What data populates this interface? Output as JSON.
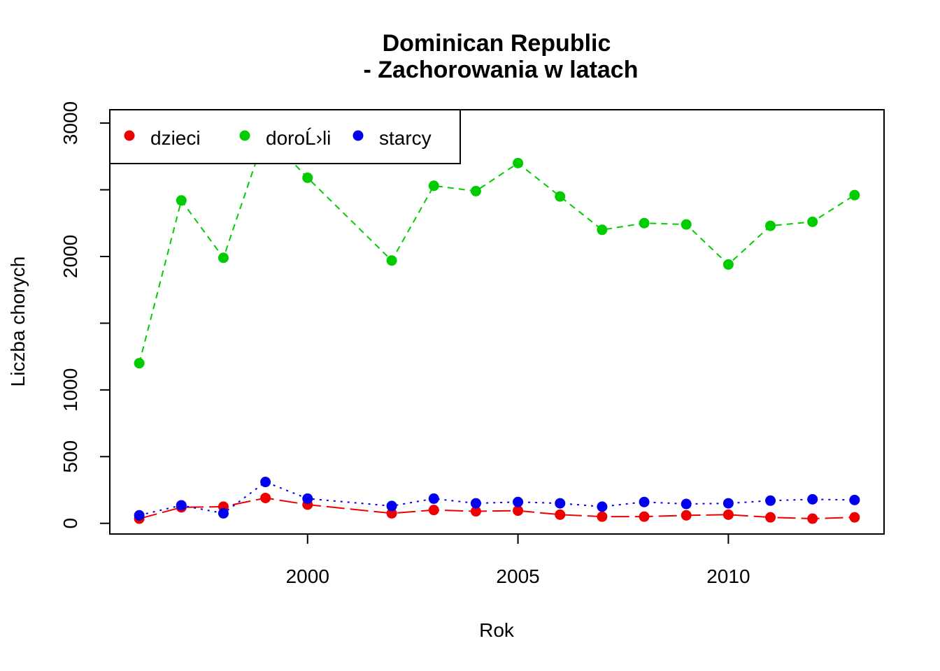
{
  "chart_data": {
    "type": "line",
    "title_line1": "Dominican Republic",
    "title_line2": "- Zachorowania w latach",
    "xlabel": "Rok",
    "ylabel": "Liczba chorych",
    "xlim": [
      1995.3,
      2013.7
    ],
    "ylim": [
      -80,
      3100
    ],
    "x_ticks": [
      2000,
      2005,
      2010
    ],
    "y_ticks": [
      0,
      500,
      1000,
      1500,
      2000,
      2500,
      3000
    ],
    "y_tick_labels": [
      "0",
      "500",
      "1000",
      "",
      "2000",
      "",
      "3000"
    ],
    "x": [
      1996,
      1997,
      1998,
      1999,
      2000,
      2002,
      2003,
      2004,
      2005,
      2006,
      2007,
      2008,
      2009,
      2010,
      2011,
      2012,
      2013
    ],
    "series": [
      {
        "name": "dzieci",
        "color": "#ee0000",
        "dash": "long-dash",
        "values": [
          35,
          120,
          125,
          190,
          140,
          75,
          100,
          90,
          95,
          65,
          50,
          50,
          60,
          65,
          45,
          35,
          45
        ]
      },
      {
        "name": "doroĹ›li",
        "color": "#00cc00",
        "dash": "short-dash",
        "values": [
          1200,
          2420,
          1990,
          2920,
          2590,
          1970,
          2530,
          2490,
          2700,
          2450,
          2200,
          2250,
          2240,
          1940,
          2230,
          2260,
          2460
        ]
      },
      {
        "name": "starcy",
        "color": "#0000ee",
        "dash": "dotted",
        "values": [
          60,
          135,
          75,
          310,
          185,
          130,
          185,
          150,
          160,
          150,
          125,
          160,
          145,
          150,
          170,
          180,
          175
        ]
      }
    ],
    "legend_position": "top-left",
    "grid": false
  }
}
